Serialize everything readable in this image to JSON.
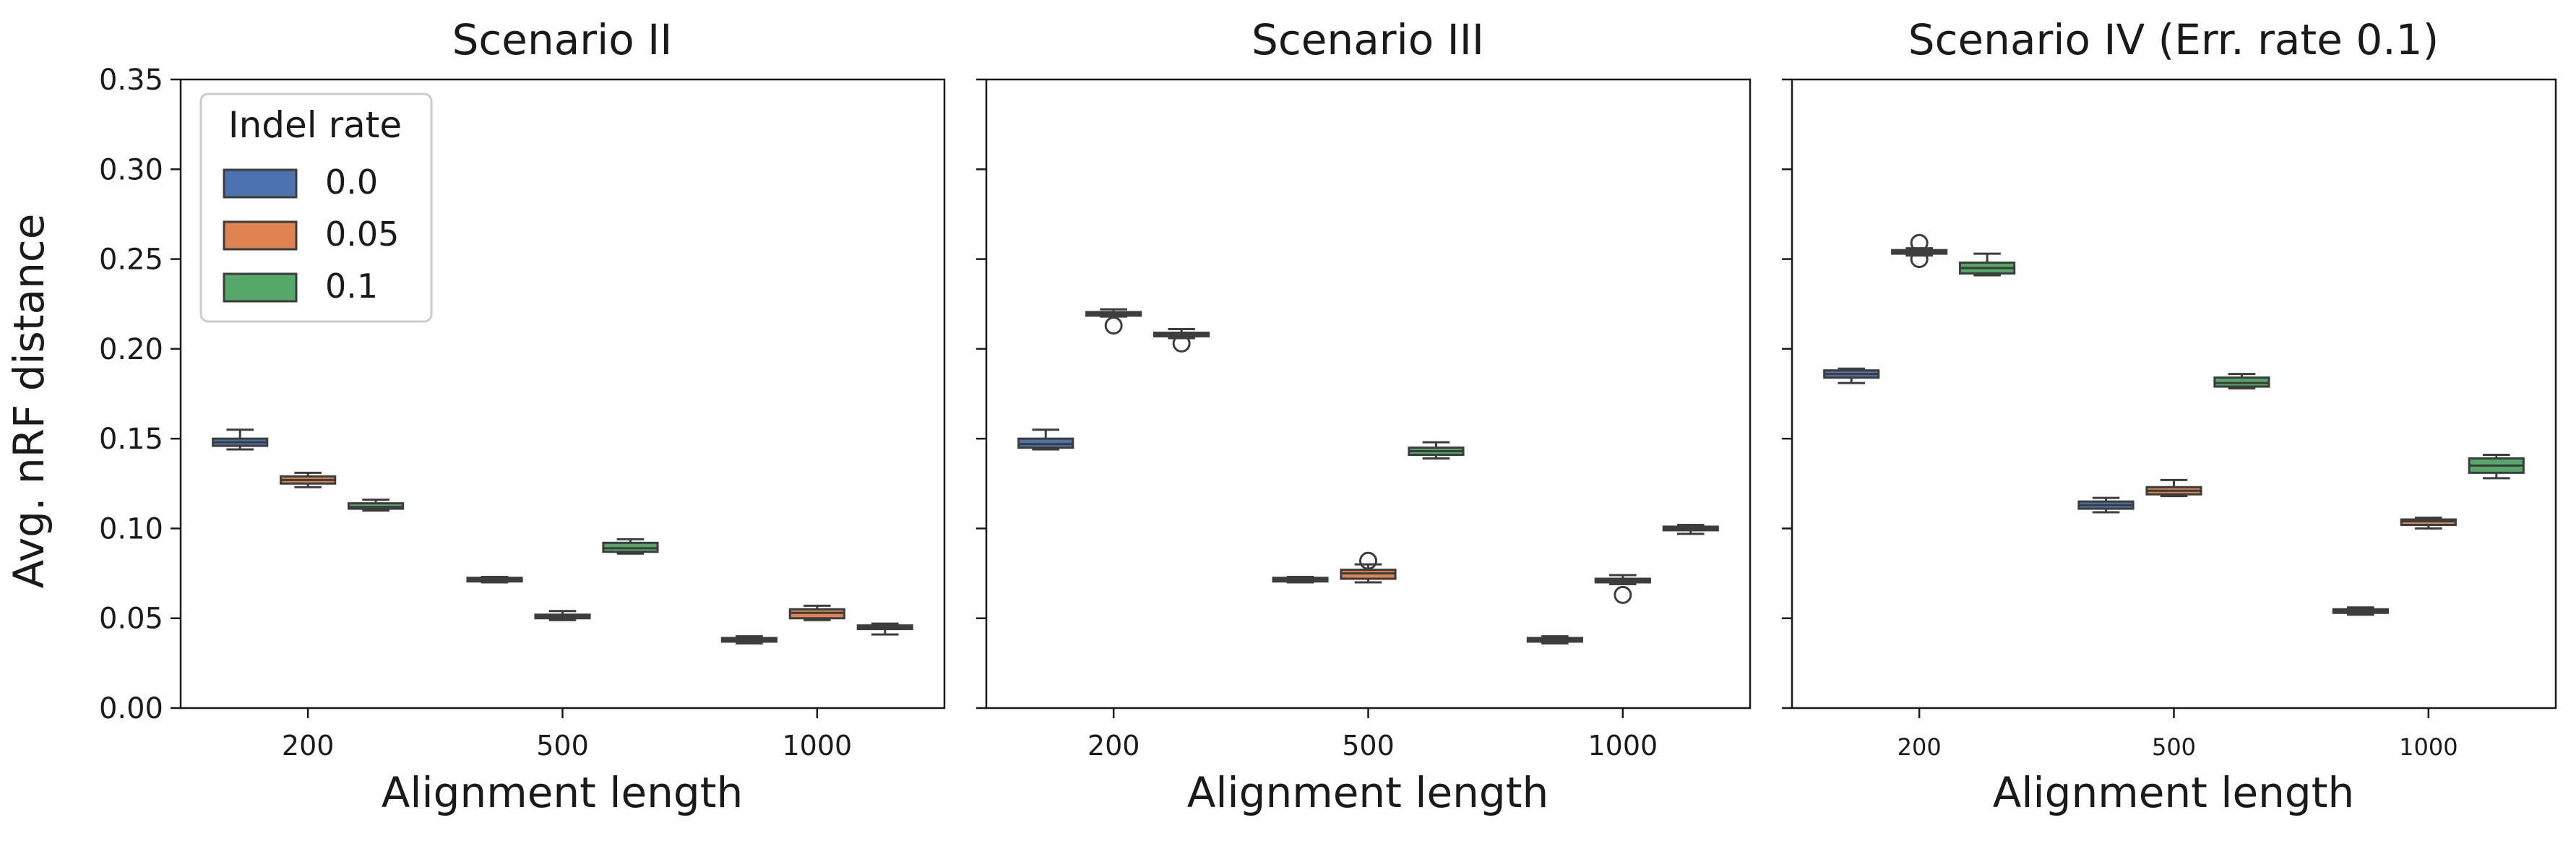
{
  "figure": {
    "ylabel": "Avg. nRF distance",
    "legend": {
      "title": "Indel rate",
      "placement": "upper-left of first panel",
      "entries": [
        "0.0",
        "0.05",
        "0.1"
      ]
    },
    "yticks": [
      "0.00",
      "0.05",
      "0.10",
      "0.15",
      "0.20",
      "0.25",
      "0.30",
      "0.35"
    ]
  },
  "colors": {
    "0.0": "#4c72b0",
    "0.05": "#dd8452",
    "0.1": "#55a868",
    "box_edge": "#3d3d3d"
  },
  "chart_data": [
    {
      "type": "box",
      "title": "Scenario II",
      "xlabel": "Alignment length",
      "ylabel": "Avg. nRF distance",
      "categories": [
        "200",
        "500",
        "1000"
      ],
      "hue": [
        "0.0",
        "0.05",
        "0.1"
      ],
      "ylim": [
        0,
        0.35
      ],
      "grid": false,
      "series": [
        {
          "name": "0.0",
          "boxes": [
            {
              "whislo": 0.144,
              "q1": 0.146,
              "med": 0.148,
              "q3": 0.15,
              "whishi": 0.155
            },
            {
              "whislo": 0.07,
              "q1": 0.0705,
              "med": 0.0715,
              "q3": 0.0725,
              "whishi": 0.073
            },
            {
              "whislo": 0.036,
              "q1": 0.037,
              "med": 0.038,
              "q3": 0.039,
              "whishi": 0.04
            }
          ]
        },
        {
          "name": "0.05",
          "boxes": [
            {
              "whislo": 0.123,
              "q1": 0.125,
              "med": 0.127,
              "q3": 0.129,
              "whishi": 0.131
            },
            {
              "whislo": 0.049,
              "q1": 0.05,
              "med": 0.051,
              "q3": 0.052,
              "whishi": 0.054
            },
            {
              "whislo": 0.049,
              "q1": 0.05,
              "med": 0.053,
              "q3": 0.055,
              "whishi": 0.057
            }
          ]
        },
        {
          "name": "0.1",
          "boxes": [
            {
              "whislo": 0.11,
              "q1": 0.111,
              "med": 0.112,
              "q3": 0.114,
              "whishi": 0.116
            },
            {
              "whislo": 0.086,
              "q1": 0.087,
              "med": 0.089,
              "q3": 0.092,
              "whishi": 0.094
            },
            {
              "whislo": 0.041,
              "q1": 0.044,
              "med": 0.045,
              "q3": 0.046,
              "whishi": 0.047
            }
          ]
        }
      ]
    },
    {
      "type": "box",
      "title": "Scenario III",
      "xlabel": "Alignment length",
      "categories": [
        "200",
        "500",
        "1000"
      ],
      "hue": [
        "0.0",
        "0.05",
        "0.1"
      ],
      "ylim": [
        0,
        0.35
      ],
      "grid": false,
      "series": [
        {
          "name": "0.0",
          "boxes": [
            {
              "whislo": 0.144,
              "q1": 0.145,
              "med": 0.147,
              "q3": 0.15,
              "whishi": 0.155
            },
            {
              "whislo": 0.07,
              "q1": 0.0705,
              "med": 0.0715,
              "q3": 0.0725,
              "whishi": 0.073
            },
            {
              "whislo": 0.036,
              "q1": 0.037,
              "med": 0.038,
              "q3": 0.039,
              "whishi": 0.04
            }
          ]
        },
        {
          "name": "0.05",
          "boxes": [
            {
              "whislo": 0.218,
              "q1": 0.2185,
              "med": 0.2195,
              "q3": 0.2205,
              "whishi": 0.222,
              "fliers": [
                0.213
              ]
            },
            {
              "whislo": 0.07,
              "q1": 0.072,
              "med": 0.075,
              "q3": 0.077,
              "whishi": 0.08,
              "fliers": [
                0.082
              ]
            },
            {
              "whislo": 0.069,
              "q1": 0.07,
              "med": 0.071,
              "q3": 0.072,
              "whishi": 0.074,
              "fliers": [
                0.063
              ]
            }
          ]
        },
        {
          "name": "0.1",
          "boxes": [
            {
              "whislo": 0.206,
              "q1": 0.207,
              "med": 0.208,
              "q3": 0.209,
              "whishi": 0.211,
              "fliers": [
                0.203
              ]
            },
            {
              "whislo": 0.139,
              "q1": 0.141,
              "med": 0.143,
              "q3": 0.145,
              "whishi": 0.148
            },
            {
              "whislo": 0.097,
              "q1": 0.099,
              "med": 0.1,
              "q3": 0.101,
              "whishi": 0.102
            }
          ]
        }
      ]
    },
    {
      "type": "box",
      "title": "Scenario IV (Err. rate 0.1)",
      "xlabel": "Alignment length",
      "categories": [
        "200",
        "500",
        "1000"
      ],
      "hue": [
        "0.0",
        "0.05",
        "0.1"
      ],
      "ylim": [
        0,
        0.35
      ],
      "grid": false,
      "series": [
        {
          "name": "0.0",
          "boxes": [
            {
              "whislo": 0.181,
              "q1": 0.184,
              "med": 0.186,
              "q3": 0.188,
              "whishi": 0.189
            },
            {
              "whislo": 0.109,
              "q1": 0.111,
              "med": 0.113,
              "q3": 0.115,
              "whishi": 0.117
            },
            {
              "whislo": 0.052,
              "q1": 0.053,
              "med": 0.054,
              "q3": 0.055,
              "whishi": 0.056
            }
          ]
        },
        {
          "name": "0.05",
          "boxes": [
            {
              "whislo": 0.252,
              "q1": 0.253,
              "med": 0.254,
              "q3": 0.255,
              "whishi": 0.256,
              "fliers": [
                0.259,
                0.25
              ]
            },
            {
              "whislo": 0.118,
              "q1": 0.119,
              "med": 0.121,
              "q3": 0.123,
              "whishi": 0.127
            },
            {
              "whislo": 0.1,
              "q1": 0.102,
              "med": 0.104,
              "q3": 0.105,
              "whishi": 0.106
            }
          ]
        },
        {
          "name": "0.1",
          "boxes": [
            {
              "whislo": 0.241,
              "q1": 0.242,
              "med": 0.245,
              "q3": 0.248,
              "whishi": 0.253
            },
            {
              "whislo": 0.178,
              "q1": 0.179,
              "med": 0.181,
              "q3": 0.184,
              "whishi": 0.186
            },
            {
              "whislo": 0.128,
              "q1": 0.131,
              "med": 0.135,
              "q3": 0.139,
              "whishi": 0.141
            }
          ]
        }
      ]
    }
  ]
}
